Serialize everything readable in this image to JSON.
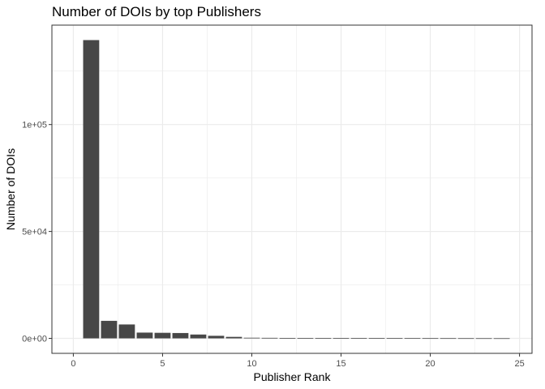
{
  "chart_data": {
    "type": "bar",
    "title": "Number of DOIs by top Publishers",
    "xlabel": "Publisher Rank",
    "ylabel": "Number of DOIs",
    "x": [
      1,
      2,
      3,
      4,
      5,
      6,
      7,
      8,
      9,
      10,
      11,
      12,
      13,
      14,
      15,
      16,
      17,
      18,
      19,
      20,
      21,
      22,
      23,
      24
    ],
    "values": [
      139500,
      8200,
      6500,
      2700,
      2600,
      2500,
      1800,
      1200,
      700,
      300,
      250,
      200,
      180,
      160,
      150,
      140,
      130,
      120,
      110,
      100,
      90,
      80,
      70,
      60
    ],
    "xlim": [
      -1.2,
      25.7
    ],
    "ylim": [
      -7000,
      146500
    ],
    "x_ticks": [
      0,
      5,
      10,
      15,
      20,
      25
    ],
    "x_tick_labels": [
      "0",
      "5",
      "10",
      "15",
      "20",
      "25"
    ],
    "y_ticks": [
      0,
      50000,
      100000
    ],
    "y_tick_labels": [
      "0e+00",
      "5e+04",
      "1e+05"
    ],
    "bar_color": "#474747",
    "grid": true,
    "grid_color": "#ebebeb",
    "panel_border_color": "#333333"
  }
}
